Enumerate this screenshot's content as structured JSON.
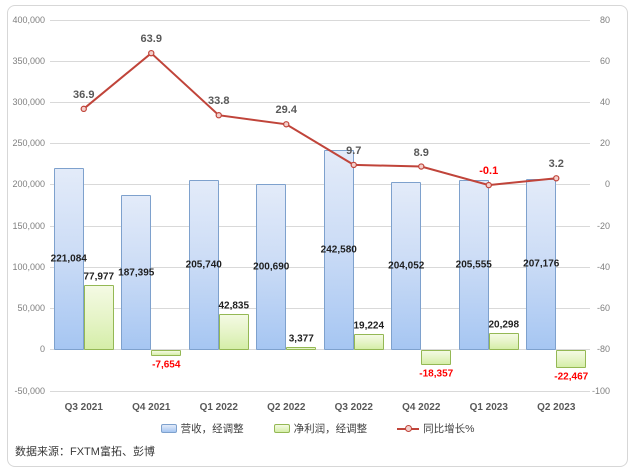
{
  "chart_data": {
    "type": "combo",
    "title": "",
    "categories": [
      "Q3 2021",
      "Q4 2021",
      "Q1 2022",
      "Q2 2022",
      "Q3 2022",
      "Q4 2022",
      "Q1 2023",
      "Q2 2023"
    ],
    "series": [
      {
        "name": "营收，经调整",
        "type": "bar",
        "axis": "left",
        "values": [
          221084,
          187395,
          205740,
          200690,
          242580,
          204052,
          205555,
          207176
        ],
        "value_labels": [
          "221,084",
          "187,395",
          "205,740",
          "200,690",
          "242,580",
          "204,052",
          "205,555",
          "207,176"
        ],
        "label_position": "center",
        "fill_top": "#e3ebf9",
        "fill_bottom": "#a6c6f2",
        "border": "#7ea1cd"
      },
      {
        "name": "净利润，经调整",
        "type": "bar",
        "axis": "left",
        "values": [
          77977,
          -7654,
          42835,
          3377,
          19224,
          -18357,
          20298,
          -22467
        ],
        "value_labels": [
          "77,977",
          "-7,654",
          "42,835",
          "3,377",
          "19,224",
          "-18,357",
          "20,298",
          "-22,467"
        ],
        "label_position": "outside-end",
        "fill_top": "#f4fae4",
        "fill_bottom": "#d5eea8",
        "border": "#94b854"
      },
      {
        "name": "同比增长%",
        "type": "line",
        "axis": "right",
        "values": [
          36.9,
          63.9,
          33.8,
          29.4,
          9.7,
          8.9,
          -0.1,
          3.2
        ],
        "value_labels": [
          "36.9",
          "63.9",
          "33.8",
          "29.4",
          "9.7",
          "8.9",
          "-0.1",
          "3.2"
        ],
        "color": "#c0443a",
        "marker_fill": "#f4d0cc"
      }
    ],
    "left_axis": {
      "min": -50000,
      "max": 400000,
      "step": 50000,
      "tick_labels": [
        "400,000",
        "350,000",
        "300,000",
        "250,000",
        "200,000",
        "150,000",
        "100,000",
        "50,000",
        "0",
        "-50,000"
      ]
    },
    "right_axis": {
      "min": -100,
      "max": 80,
      "step": 20,
      "tick_labels": [
        "80",
        "60",
        "40",
        "20",
        "0",
        "-20",
        "-40",
        "-60",
        "-80",
        "-100"
      ]
    },
    "grid": true,
    "legend_position": "bottom",
    "colors": {
      "grid": "#d9d9d9",
      "bar_label": "#1f1f1f",
      "negative_label": "#ff0000",
      "line_label": "#595959",
      "axis_tick": "#7f7f7f",
      "category_label": "#595959"
    }
  },
  "source_note": "数据来源：FXTM富拓、彭博"
}
